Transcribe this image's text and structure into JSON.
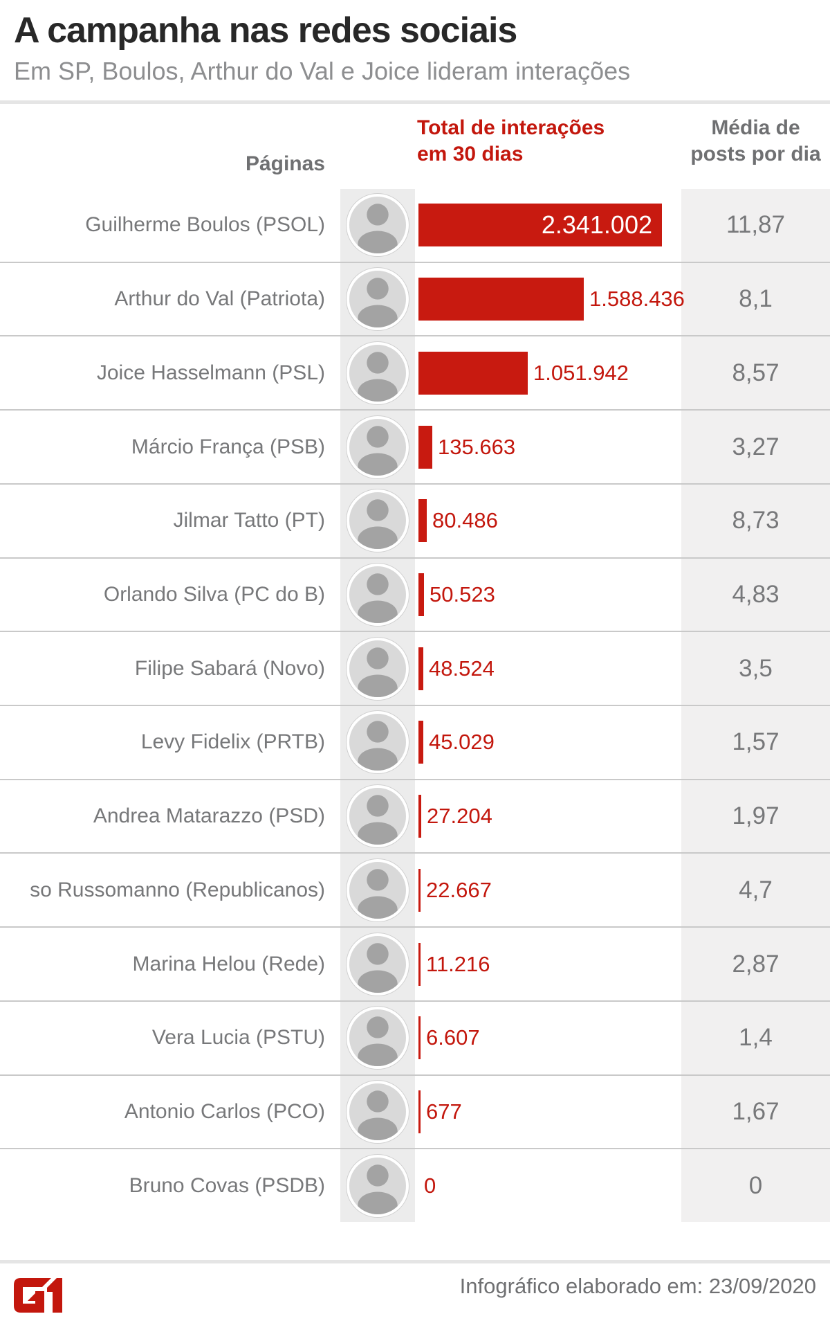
{
  "header": {
    "title": "A campanha nas redes sociais",
    "subtitle": "Em SP, Boulos, Arthur do Val e Joice lideram interações"
  },
  "columns": {
    "pages_label": "Páginas",
    "interactions_label_line1": "Total de interações",
    "interactions_label_line2": "em 30 dias",
    "avg_label_line1": "Média de",
    "avg_label_line2": "posts por dia"
  },
  "rows": [
    {
      "label": "Guilherme Boulos (PSOL)",
      "interactions": 2341002,
      "interactions_label": "2.341.002",
      "avg_posts_label": "11,87"
    },
    {
      "label": "Arthur do Val (Patriota)",
      "interactions": 1588436,
      "interactions_label": "1.588.436",
      "avg_posts_label": "8,1"
    },
    {
      "label": "Joice Hasselmann (PSL)",
      "interactions": 1051942,
      "interactions_label": "1.051.942",
      "avg_posts_label": "8,57"
    },
    {
      "label": "Márcio França (PSB)",
      "interactions": 135663,
      "interactions_label": "135.663",
      "avg_posts_label": "3,27"
    },
    {
      "label": "Jilmar Tatto (PT)",
      "interactions": 80486,
      "interactions_label": "80.486",
      "avg_posts_label": "8,73"
    },
    {
      "label": "Orlando Silva (PC do B)",
      "interactions": 50523,
      "interactions_label": "50.523",
      "avg_posts_label": "4,83"
    },
    {
      "label": "Filipe Sabará (Novo)",
      "interactions": 48524,
      "interactions_label": "48.524",
      "avg_posts_label": "3,5"
    },
    {
      "label": "Levy Fidelix (PRTB)",
      "interactions": 45029,
      "interactions_label": "45.029",
      "avg_posts_label": "1,57"
    },
    {
      "label": "Andrea Matarazzo (PSD)",
      "interactions": 27204,
      "interactions_label": "27.204",
      "avg_posts_label": "1,97"
    },
    {
      "label": "so Russomanno (Republicanos)",
      "interactions": 22667,
      "interactions_label": "22.667",
      "avg_posts_label": "4,7"
    },
    {
      "label": "Marina Helou (Rede)",
      "interactions": 11216,
      "interactions_label": "11.216",
      "avg_posts_label": "2,87"
    },
    {
      "label": "Vera Lucia (PSTU)",
      "interactions": 6607,
      "interactions_label": "6.607",
      "avg_posts_label": "1,4"
    },
    {
      "label": "Antonio Carlos (PCO)",
      "interactions": 677,
      "interactions_label": "677",
      "avg_posts_label": "1,67"
    },
    {
      "label": "Bruno Covas (PSDB)",
      "interactions": 0,
      "interactions_label": "0",
      "avg_posts_label": "0"
    }
  ],
  "footer": {
    "logo_text": "G1",
    "note": "Infográfico elaborado em: 23/09/2020"
  },
  "colors": {
    "accent_red": "#c3170d",
    "bar_red": "#c81a10",
    "title_dark": "#282828",
    "subtitle_gray": "#8d8e90",
    "label_gray": "#77787a",
    "header_gray": "#6f7072",
    "avg_band_gray": "#f1f0f0",
    "avatar_band_gray": "#ececec"
  },
  "chart_data": {
    "type": "bar",
    "orientation": "horizontal",
    "title": "A campanha nas redes sociais",
    "subtitle": "Em SP, Boulos, Arthur do Val e Joice lideram interações",
    "categories": [
      "Guilherme Boulos (PSOL)",
      "Arthur do Val (Patriota)",
      "Joice Hasselmann (PSL)",
      "Márcio França (PSB)",
      "Jilmar Tatto (PT)",
      "Orlando Silva (PC do B)",
      "Filipe Sabará (Novo)",
      "Levy Fidelix (PRTB)",
      "Andrea Matarazzo (PSD)",
      "so Russomanno (Republicanos)",
      "Marina Helou (Rede)",
      "Vera Lucia (PSTU)",
      "Antonio Carlos (PCO)",
      "Bruno Covas (PSDB)"
    ],
    "series": [
      {
        "name": "Total de interações em 30 dias",
        "values": [
          2341002,
          1588436,
          1051942,
          135663,
          80486,
          50523,
          48524,
          45029,
          27204,
          22667,
          11216,
          6607,
          677,
          0
        ],
        "value_labels": [
          "2.341.002",
          "1.588.436",
          "1.051.942",
          "135.663",
          "80.486",
          "50.523",
          "48.524",
          "45.029",
          "27.204",
          "22.667",
          "11.216",
          "6.607",
          "677",
          "0"
        ]
      },
      {
        "name": "Média de posts por dia",
        "values": [
          11.87,
          8.1,
          8.57,
          3.27,
          8.73,
          4.83,
          3.5,
          1.57,
          1.97,
          4.7,
          2.87,
          1.4,
          1.67,
          0
        ],
        "value_labels": [
          "11,87",
          "8,1",
          "8,57",
          "3,27",
          "8,73",
          "4,83",
          "3,5",
          "1,57",
          "1,97",
          "4,7",
          "2,87",
          "1,4",
          "1,67",
          "0"
        ]
      }
    ],
    "xlim": [
      0,
      2341002
    ],
    "grid": false,
    "legend_position": "none",
    "annotations": [
      "Infográfico elaborado em: 23/09/2020"
    ]
  }
}
